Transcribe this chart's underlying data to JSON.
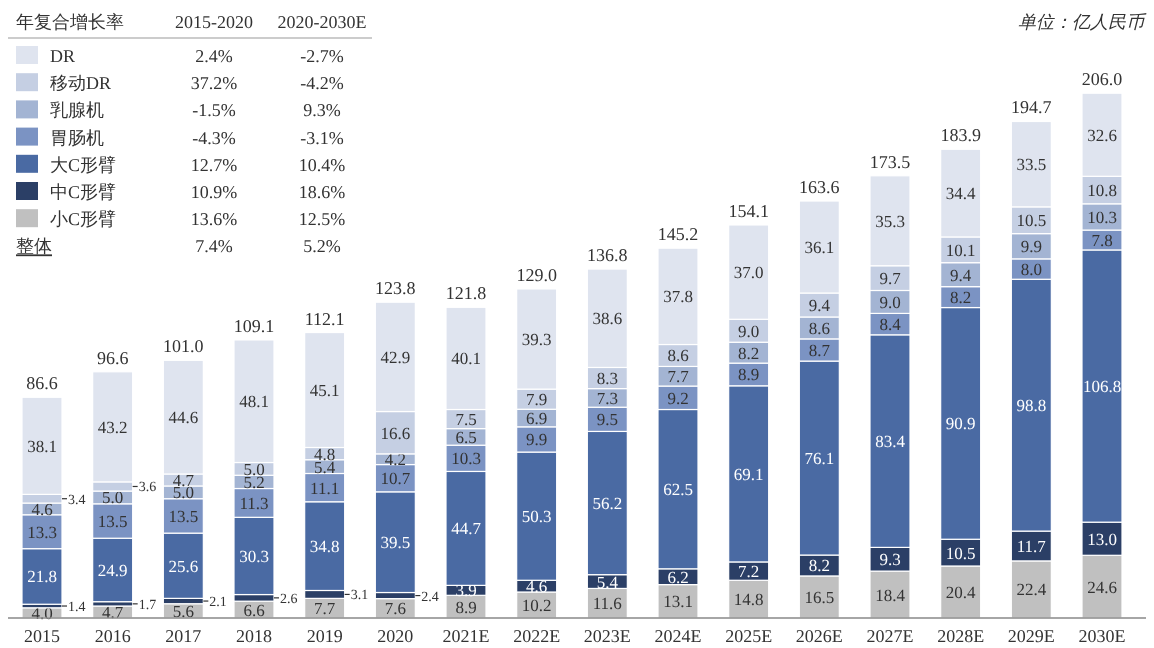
{
  "chart_data": {
    "type": "bar",
    "stacked": true,
    "legend": "top left",
    "legend_title": "年复合增长率",
    "tick_labels": "x",
    "ylim": [
      0,
      215
    ],
    "categories": [
      "2015",
      "2016",
      "2017",
      "2018",
      "2019",
      "2020",
      "2021E",
      "2022E",
      "2023E",
      "2024E",
      "2025E",
      "2026E",
      "2027E",
      "2028E",
      "2029E",
      "2030E"
    ],
    "series": [
      {
        "name": "小C形臂",
        "color": "#c0c0c0",
        "values": [
          4.0,
          4.7,
          5.6,
          6.6,
          7.7,
          7.6,
          8.9,
          10.2,
          11.6,
          13.1,
          14.8,
          16.5,
          18.4,
          20.4,
          22.4,
          24.6
        ],
        "value_labels": [
          "4.0",
          "4.7",
          "5.6",
          "6.6",
          "7.7",
          "7.6",
          "8.9",
          "10.2",
          "11.6",
          "13.1",
          "14.8",
          "16.5",
          "18.4",
          "20.4",
          "22.4",
          "24.6"
        ]
      },
      {
        "name": "中C形臂",
        "color": "#2b3f66",
        "values": [
          1.4,
          1.7,
          2.1,
          2.6,
          3.1,
          2.4,
          3.9,
          4.6,
          5.4,
          6.2,
          7.2,
          8.2,
          9.3,
          10.5,
          11.7,
          13.0
        ],
        "value_labels": [
          "1.4",
          "1.7",
          "2.1",
          "2.6",
          "3.1",
          "2.4",
          "3.9",
          "4.6",
          "5.4",
          "6.2",
          "7.2",
          "8.2",
          "9.3",
          "10.5",
          "11.7",
          "13.0"
        ]
      },
      {
        "name": "大C形臂",
        "color": "#4a6aa3",
        "values": [
          21.8,
          24.9,
          25.6,
          30.3,
          34.8,
          39.5,
          44.7,
          50.3,
          56.2,
          62.5,
          69.1,
          76.1,
          83.4,
          90.9,
          98.8,
          106.8
        ],
        "value_labels": [
          "21.8",
          "24.9",
          "25.6",
          "30.3",
          "34.8",
          "39.5",
          "44.7",
          "50.3",
          "56.2",
          "62.5",
          "69.1",
          "76.1",
          "83.4",
          "90.9",
          "98.8",
          "106.8"
        ]
      },
      {
        "name": "胃肠机",
        "color": "#7b93c3",
        "values": [
          13.3,
          13.5,
          13.5,
          11.3,
          11.1,
          10.7,
          10.3,
          9.9,
          9.5,
          9.2,
          8.9,
          8.7,
          8.4,
          8.2,
          8.0,
          7.8
        ],
        "value_labels": [
          "13.3",
          "13.5",
          "13.5",
          "11.3",
          "11.1",
          "10.7",
          "10.3",
          "9.9",
          "9.5",
          "9.2",
          "8.9",
          "8.7",
          "8.4",
          "8.2",
          "8.0",
          "7.8"
        ]
      },
      {
        "name": "乳腺机",
        "color": "#a3b4d3",
        "values": [
          4.6,
          5.0,
          5.0,
          5.2,
          5.4,
          4.2,
          6.5,
          6.9,
          7.3,
          7.7,
          8.2,
          8.6,
          9.0,
          9.4,
          9.9,
          10.3
        ],
        "value_labels": [
          "4.6",
          "5.0",
          "5.0",
          "5.2",
          "5.4",
          "4.2",
          "6.5",
          "6.9",
          "7.3",
          "7.7",
          "8.2",
          "8.6",
          "9.0",
          "9.4",
          "9.9",
          "10.3"
        ]
      },
      {
        "name": "移动DR",
        "color": "#c5cfe3",
        "values": [
          3.4,
          3.6,
          4.7,
          5.0,
          4.8,
          16.6,
          7.5,
          7.9,
          8.3,
          8.6,
          9.0,
          9.4,
          9.7,
          10.1,
          10.5,
          10.8
        ],
        "value_labels": [
          "3.4",
          "3.6",
          "4.7",
          "5.0",
          "4.8",
          "16.6",
          "7.5",
          "7.9",
          "8.3",
          "8.6",
          "9.0",
          "9.4",
          "9.7",
          "10.1",
          "10.5",
          "10.8"
        ]
      },
      {
        "name": "DR",
        "color": "#dfe4ef",
        "values": [
          38.1,
          43.2,
          44.6,
          48.1,
          45.1,
          42.9,
          40.1,
          39.3,
          38.6,
          37.8,
          37.0,
          36.1,
          35.3,
          34.4,
          33.5,
          32.6
        ],
        "value_labels": [
          "38.1",
          "43.2",
          "44.6",
          "48.1",
          "45.1",
          "42.9",
          "40.1",
          "39.3",
          "38.6",
          "37.8",
          "37.0",
          "36.1",
          "35.3",
          "34.4",
          "33.5",
          "32.6"
        ]
      }
    ],
    "totals": [
      "86.6",
      "96.6",
      "101.0",
      "109.1",
      "112.1",
      "123.8",
      "121.8",
      "129.0",
      "136.8",
      "145.2",
      "154.1",
      "163.6",
      "173.5",
      "183.9",
      "194.7",
      "206.0"
    ],
    "annotations": [
      "2015-2020",
      "2020-2030E",
      "2.4%",
      "-2.7%",
      "37.2%",
      "-4.2%",
      "-1.5%",
      "9.3%",
      "-4.3%",
      "-3.1%",
      "12.7%",
      "10.4%",
      "10.9%",
      "18.6%",
      "13.6%",
      "12.5%",
      "整体",
      "7.4%",
      "5.2%",
      "单位：亿人民币"
    ]
  }
}
